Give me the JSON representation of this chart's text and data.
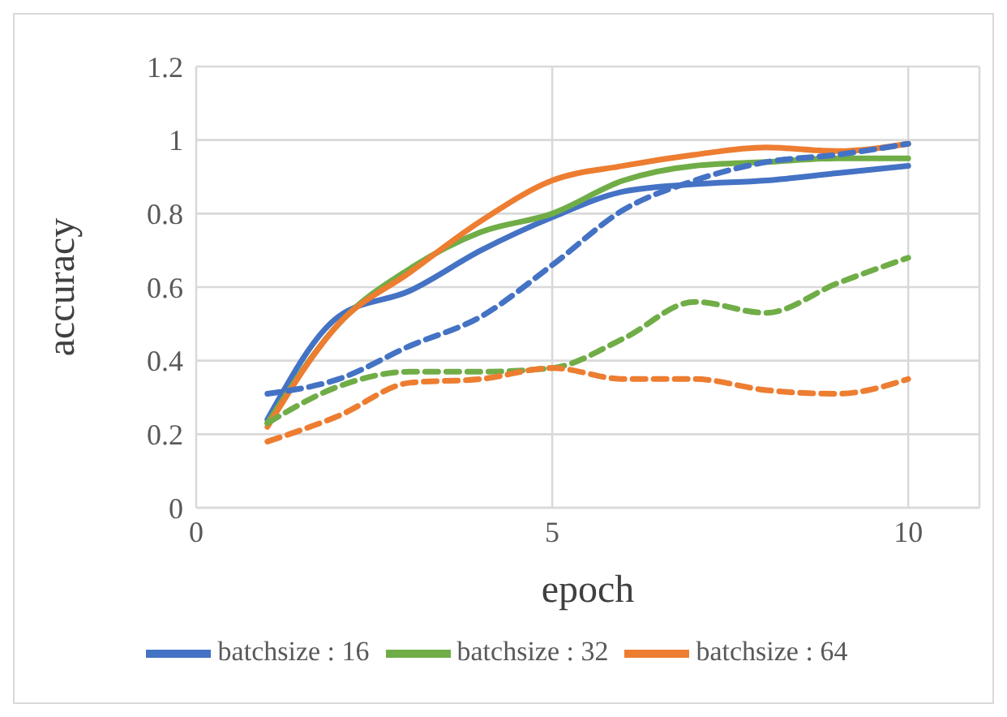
{
  "chart_data": {
    "type": "line",
    "xlabel": "epoch",
    "ylabel": "accuracy",
    "x": [
      1,
      2,
      3,
      4,
      5,
      6,
      7,
      8,
      9,
      10
    ],
    "xlim": [
      0,
      11
    ],
    "xticks": [
      0,
      5,
      10
    ],
    "ylim": [
      0,
      1.2
    ],
    "yticks": [
      0,
      0.2,
      0.4,
      0.6,
      0.8,
      1,
      1.2
    ],
    "grid": true,
    "legend": "bottom",
    "marker": "none",
    "series": [
      {
        "name": "batchsize : 16",
        "color": "#4472c4",
        "line_style": "solid",
        "values": [
          0.24,
          0.52,
          0.59,
          0.7,
          0.79,
          0.86,
          0.88,
          0.89,
          0.91,
          0.93
        ]
      },
      {
        "name": "batchsize : 32",
        "color": "#70ad47",
        "line_style": "solid",
        "values": [
          0.23,
          0.5,
          0.65,
          0.75,
          0.8,
          0.89,
          0.93,
          0.94,
          0.95,
          0.95
        ]
      },
      {
        "name": "batchsize : 64",
        "color": "#ed7d31",
        "line_style": "solid",
        "values": [
          0.22,
          0.5,
          0.64,
          0.78,
          0.89,
          0.93,
          0.96,
          0.98,
          0.97,
          0.99
        ]
      },
      {
        "color": "#4472c4",
        "line_style": "dashed",
        "values": [
          0.31,
          0.35,
          0.44,
          0.52,
          0.66,
          0.81,
          0.89,
          0.94,
          0.96,
          0.99
        ]
      },
      {
        "color": "#70ad47",
        "line_style": "dashed",
        "values": [
          0.23,
          0.33,
          0.37,
          0.37,
          0.38,
          0.46,
          0.56,
          0.53,
          0.61,
          0.68
        ]
      },
      {
        "color": "#ed7d31",
        "line_style": "dashed",
        "values": [
          0.18,
          0.25,
          0.34,
          0.35,
          0.38,
          0.35,
          0.35,
          0.32,
          0.31,
          0.35
        ]
      }
    ]
  }
}
